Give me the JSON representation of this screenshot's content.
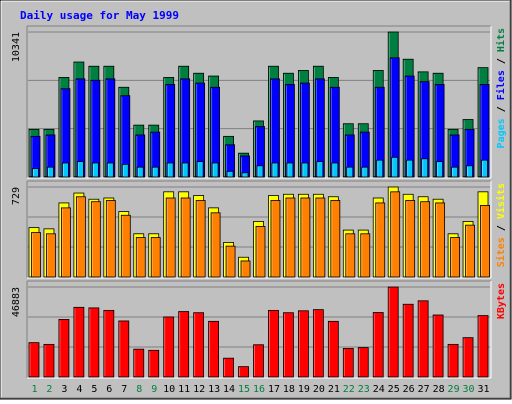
{
  "chart_data": {
    "type": "bar",
    "title": "Daily usage for May 1999",
    "categories": [
      "1",
      "2",
      "3",
      "4",
      "5",
      "6",
      "7",
      "8",
      "9",
      "10",
      "11",
      "12",
      "13",
      "14",
      "15",
      "16",
      "17",
      "18",
      "19",
      "20",
      "21",
      "22",
      "23",
      "24",
      "25",
      "26",
      "27",
      "28",
      "29",
      "30",
      "31"
    ],
    "weekend_days": [
      "1",
      "2",
      "8",
      "9",
      "15",
      "16",
      "22",
      "23",
      "29",
      "30"
    ],
    "panels": [
      {
        "id": "hits",
        "ymax_label": "10341",
        "ymax": 10341,
        "legend": [
          {
            "text": "Pages",
            "color": "#00c8ff"
          },
          {
            "text": " / ",
            "color": "#000000"
          },
          {
            "text": "Files",
            "color": "#0000ff"
          },
          {
            "text": " / ",
            "color": "#000000"
          },
          {
            "text": "Hits",
            "color": "#008040"
          }
        ],
        "series": [
          {
            "name": "Hits",
            "color": "#008040",
            "values": [
              3400,
              3400,
              7100,
              8200,
              7900,
              7900,
              6400,
              3700,
              3700,
              7100,
              7900,
              7400,
              7200,
              2900,
              1700,
              4000,
              7900,
              7400,
              7600,
              7900,
              7100,
              3800,
              3800,
              7600,
              10341,
              8400,
              7500,
              7400,
              3400,
              4100,
              7800
            ]
          },
          {
            "name": "Files",
            "color": "#0000ff",
            "values": [
              2900,
              3000,
              6300,
              7000,
              6900,
              7000,
              5800,
              3000,
              3200,
              6600,
              7000,
              6700,
              6400,
              2300,
              1500,
              3600,
              7000,
              6600,
              6700,
              7000,
              6400,
              3000,
              3200,
              6400,
              8500,
              7200,
              6800,
              6600,
              3000,
              3400,
              6600
            ]
          },
          {
            "name": "Pages",
            "color": "#00c8ff",
            "values": [
              600,
              700,
              1000,
              1100,
              1000,
              1000,
              900,
              700,
              700,
              1000,
              1000,
              1100,
              1000,
              400,
              300,
              800,
              1000,
              1000,
              1000,
              1100,
              1000,
              700,
              700,
              1200,
              1400,
              1200,
              1300,
              1100,
              700,
              800,
              1200
            ]
          }
        ]
      },
      {
        "id": "visits",
        "ymax_label": "729",
        "ymax": 729,
        "legend": [
          {
            "text": "Sites",
            "color": "#ff8000"
          },
          {
            "text": " / ",
            "color": "#000000"
          },
          {
            "text": "Visits",
            "color": "#ffff00"
          }
        ],
        "series": [
          {
            "name": "Visits",
            "color": "#ffff00",
            "values": [
              400,
              390,
              600,
              680,
              630,
              640,
              530,
              350,
              350,
              690,
              690,
              660,
              560,
              280,
              160,
              450,
              660,
              670,
              670,
              670,
              650,
              380,
              380,
              640,
              729,
              670,
              650,
              630,
              350,
              450,
              690
            ]
          },
          {
            "name": "Sites",
            "color": "#ff8000",
            "values": [
              360,
              350,
              560,
              650,
              610,
              620,
              500,
              320,
              320,
              640,
              640,
              620,
              520,
              250,
              130,
              410,
              620,
              640,
              640,
              640,
              620,
              350,
              350,
              600,
              690,
              620,
              610,
              600,
              320,
              420,
              580
            ]
          }
        ]
      },
      {
        "id": "kbytes",
        "ymax_label": "46883",
        "ymax": 46883,
        "legend": [
          {
            "text": "KBytes",
            "color": "#ff0000"
          }
        ],
        "series": [
          {
            "name": "KBytes",
            "color": "#ff0000",
            "values": [
              17900,
              17000,
              30000,
              36300,
              36000,
              34700,
              29200,
              14500,
              13900,
              31300,
              34100,
              33500,
              29000,
              9800,
              5400,
              16800,
              34700,
              33500,
              34500,
              35100,
              29000,
              14900,
              15300,
              33600,
              46883,
              37900,
              39700,
              32300,
              17000,
              20500,
              32000
            ]
          }
        ]
      }
    ]
  }
}
